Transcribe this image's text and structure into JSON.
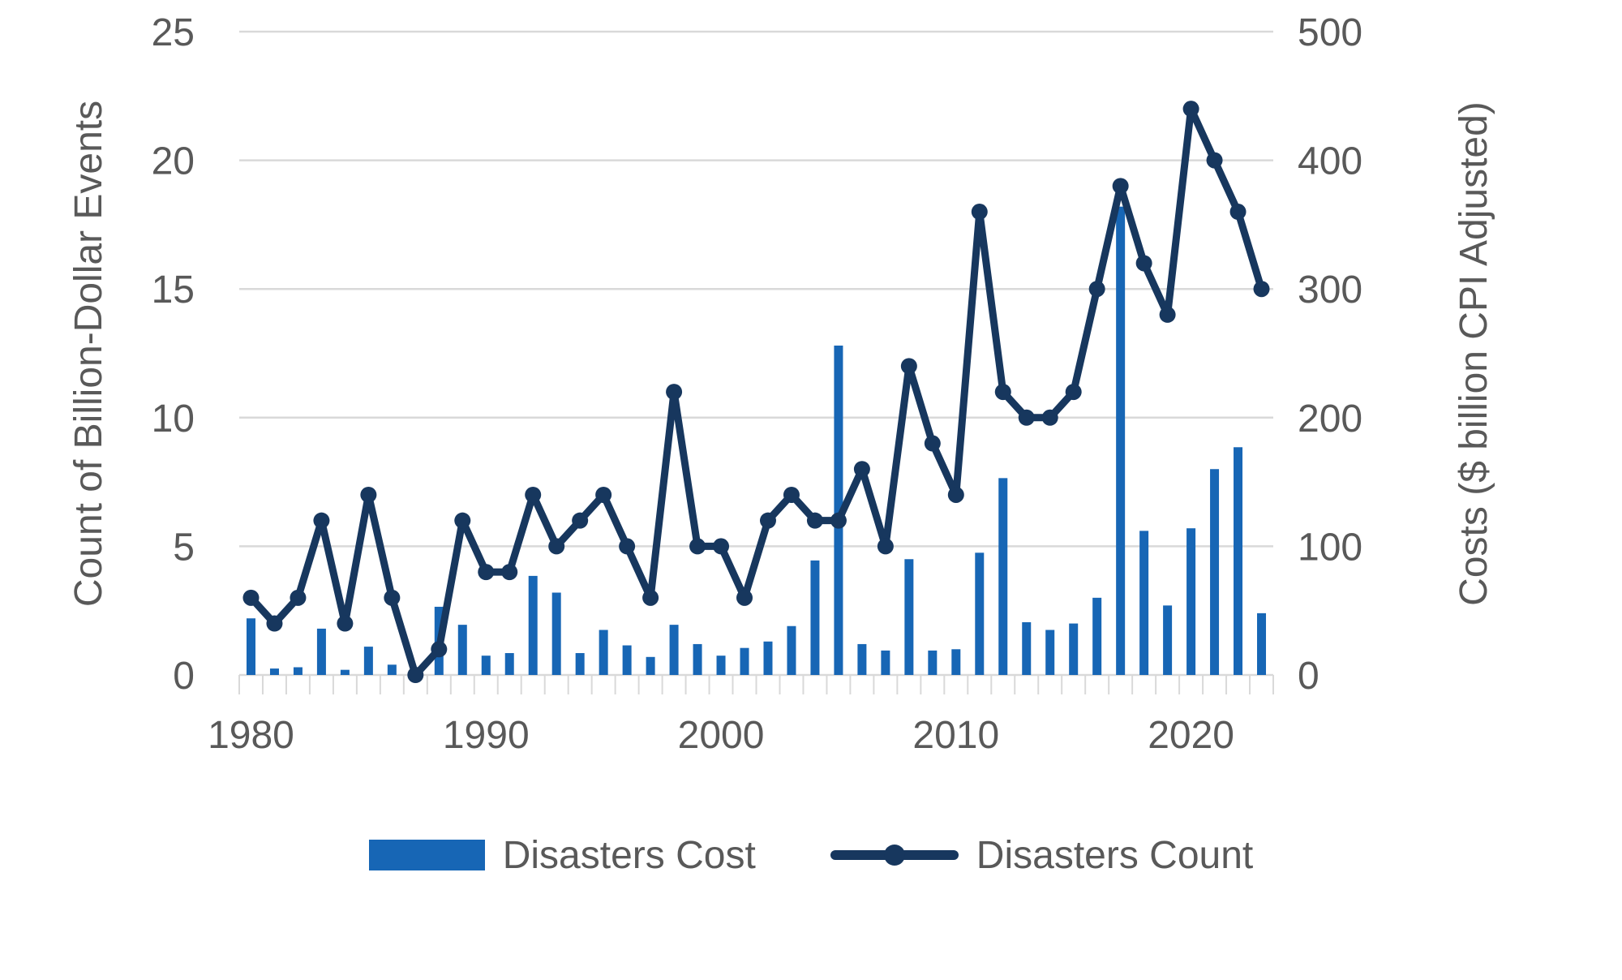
{
  "page": {
    "background": "#FFFFFF"
  },
  "chart_data": {
    "type": "combo-bar-line",
    "title": "",
    "x": [
      1980,
      1981,
      1982,
      1983,
      1984,
      1985,
      1986,
      1987,
      1988,
      1989,
      1990,
      1991,
      1992,
      1993,
      1994,
      1995,
      1996,
      1997,
      1998,
      1999,
      2000,
      2001,
      2002,
      2003,
      2004,
      2005,
      2006,
      2007,
      2008,
      2009,
      2010,
      2011,
      2012,
      2013,
      2014,
      2015,
      2016,
      2017,
      2018,
      2019,
      2020,
      2021,
      2022,
      2023
    ],
    "series": [
      {
        "name": "Disasters Cost",
        "type": "bar",
        "axis": "right",
        "color": "#1766B5",
        "values": [
          44,
          5,
          6,
          36,
          4,
          22,
          8,
          2,
          53,
          39,
          15,
          17,
          77,
          64,
          17,
          35,
          23,
          14,
          39,
          24,
          15,
          21,
          26,
          38,
          89,
          256,
          24,
          19,
          90,
          19,
          20,
          95,
          153,
          41,
          35,
          40,
          60,
          364,
          112,
          54,
          114,
          160,
          177,
          48
        ]
      },
      {
        "name": "Disasters Count",
        "type": "line",
        "axis": "left",
        "color": "#17375E",
        "values": [
          3,
          2,
          3,
          6,
          2,
          7,
          3,
          0,
          1,
          6,
          4,
          4,
          7,
          5,
          6,
          7,
          5,
          3,
          11,
          5,
          5,
          3,
          6,
          7,
          6,
          6,
          8,
          5,
          12,
          9,
          7,
          18,
          11,
          10,
          10,
          11,
          15,
          19,
          16,
          14,
          22,
          20,
          18,
          15
        ]
      }
    ],
    "left_axis": {
      "title": "Count of Billion-Dollar Events",
      "min": 0,
      "max": 25,
      "ticks": [
        0,
        5,
        10,
        15,
        20,
        25
      ]
    },
    "right_axis": {
      "title": "Costs ($ billion CPI Adjusted)",
      "min": 0,
      "max": 500,
      "ticks": [
        0,
        100,
        200,
        300,
        400,
        500
      ]
    },
    "x_axis": {
      "decade_labels": [
        1980,
        1990,
        2000,
        2010,
        2020
      ]
    },
    "grid": true,
    "legend_position": "bottom",
    "grid_color": "#D9D9D9",
    "text_color": "#595959"
  }
}
